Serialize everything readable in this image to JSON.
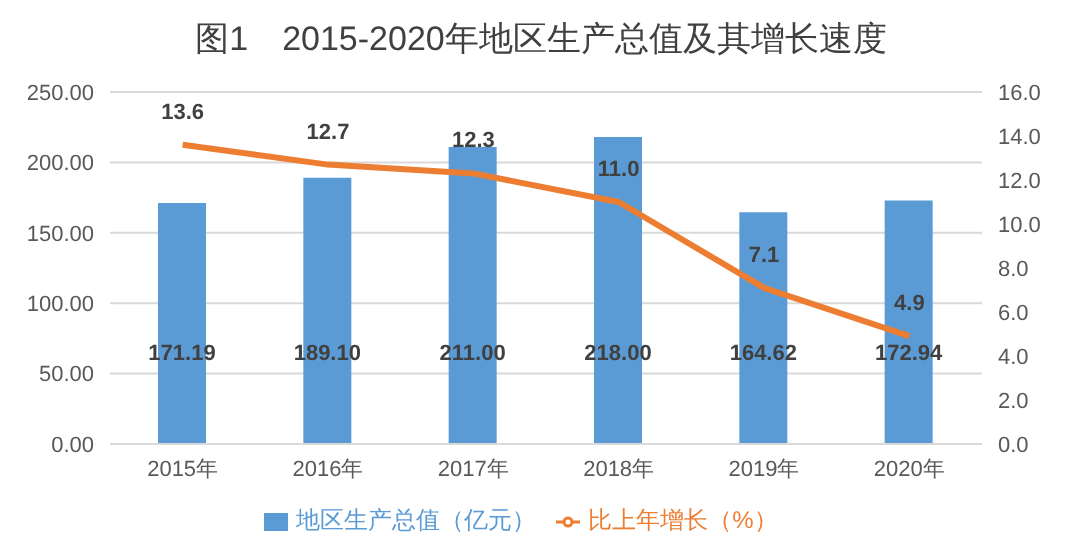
{
  "chart_data": {
    "type": "bar",
    "title": "图1　2015-2020年地区生产总值及其增长速度",
    "categories": [
      "2015年",
      "2016年",
      "2017年",
      "2018年",
      "2019年",
      "2020年"
    ],
    "series": [
      {
        "name": "地区生产总值（亿元）",
        "color": "#5b9bd5",
        "values": [
          171.19,
          189.1,
          211,
          218,
          164.62,
          172.94
        ],
        "value_labels": [
          "171.19",
          "189.10",
          "211.00",
          "218.00",
          "164.62",
          "172.94"
        ]
      },
      {
        "name": "比上年增长（%）",
        "type": "line",
        "axis": "y2",
        "color": "#ed7d31",
        "values": [
          13.6,
          12.7,
          12.3,
          11.0,
          7.1,
          4.9
        ],
        "value_labels": [
          "13.6",
          "12.7",
          "12.3",
          "11.0",
          "7.1",
          "4.9"
        ]
      }
    ],
    "ylim": [
      0,
      250
    ],
    "yticks": [
      {
        "value": 0,
        "label": "0.00"
      },
      {
        "value": 50,
        "label": "50.00"
      },
      {
        "value": 100,
        "label": "100.00"
      },
      {
        "value": 150,
        "label": "150.00"
      },
      {
        "value": 200,
        "label": "200.00"
      },
      {
        "value": 250,
        "label": "250.00"
      }
    ],
    "y2lim": [
      0,
      16
    ],
    "y2ticks": [
      {
        "value": 0,
        "label": "0.0"
      },
      {
        "value": 2,
        "label": "2.0"
      },
      {
        "value": 4,
        "label": "4.0"
      },
      {
        "value": 6,
        "label": "6.0"
      },
      {
        "value": 8,
        "label": "8.0"
      },
      {
        "value": 10,
        "label": "10.0"
      },
      {
        "value": 12,
        "label": "12.0"
      },
      {
        "value": 14,
        "label": "14.0"
      },
      {
        "value": 16,
        "label": "16.0"
      }
    ],
    "grid": "y",
    "legend": "bottom",
    "marker": "none",
    "line_style": "solid"
  }
}
